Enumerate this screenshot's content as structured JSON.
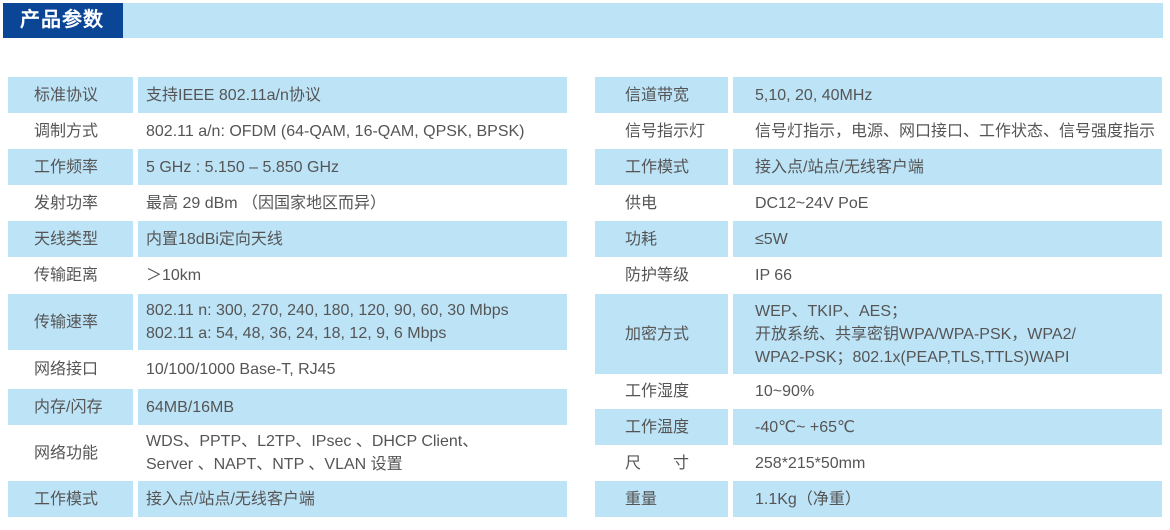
{
  "header": {
    "title": "产品参数",
    "accent_color": "#0a4596",
    "bar_color": "#bde3f7"
  },
  "left_table": [
    {
      "label": "标准协议",
      "value": "    支持IEEE 802.11a/n协议"
    },
    {
      "label": "调制方式",
      "value": "802.11 a/n: OFDM (64-QAM, 16-QAM, QPSK, BPSK)"
    },
    {
      "label": "工作频率",
      "value": "    5 GHz : 5.150 – 5.850 GHz"
    },
    {
      "label": "发射功率",
      "value": "    最高 29 dBm （因国家地区而异）"
    },
    {
      "label": "天线类型",
      "value": "    内置18dBi定向天线"
    },
    {
      "label": "传输距离",
      "value": "     ＞10km"
    },
    {
      "label": "传输速率",
      "value": "802.11 n: 300, 270, 240, 180, 120, 90, 60, 30 Mbps\n802.11 a: 54, 48, 36, 24, 18, 12, 9, 6 Mbps"
    },
    {
      "label": "网络接口",
      "value": "    10/100/1000 Base-T, RJ45"
    },
    {
      "label": "内存/闪存",
      "value": "    64MB/16MB"
    },
    {
      "label": "网络功能",
      "value": "   WDS、PPTP、L2TP、IPsec 、DHCP Client、\n   Server 、NAPT、NTP 、VLAN 设置"
    },
    {
      "label": "工作模式",
      "value": "   接入点/站点/无线客户端"
    }
  ],
  "right_table": [
    {
      "label": "信道带宽",
      "value": "5,10, 20, 40MHz"
    },
    {
      "label": "信号指示灯",
      "value": "信号灯指示，电源、网口接口、工作状态、信号强度指示"
    },
    {
      "label": "工作模式",
      "value": "接入点/站点/无线客户端"
    },
    {
      "label": "供电",
      "value": "DC12~24V PoE"
    },
    {
      "label": "功耗",
      "value": "≤5W"
    },
    {
      "label": "防护等级",
      "value": "IP 66"
    },
    {
      "label": "加密方式",
      "value": "WEP、TKIP、AES；\n开放系统、共享密钥WPA/WPA-PSK，WPA2/\nWPA2-PSK；802.1x(PEAP,TLS,TTLS)WAPI"
    },
    {
      "label": "工作湿度",
      "value": "10~90%"
    },
    {
      "label": "工作温度",
      "value": "-40℃~ +65℃"
    },
    {
      "label": "尺　　寸",
      "value": "258*215*50mm"
    },
    {
      "label": "重量",
      "value": "1.1Kg（净重）"
    }
  ]
}
